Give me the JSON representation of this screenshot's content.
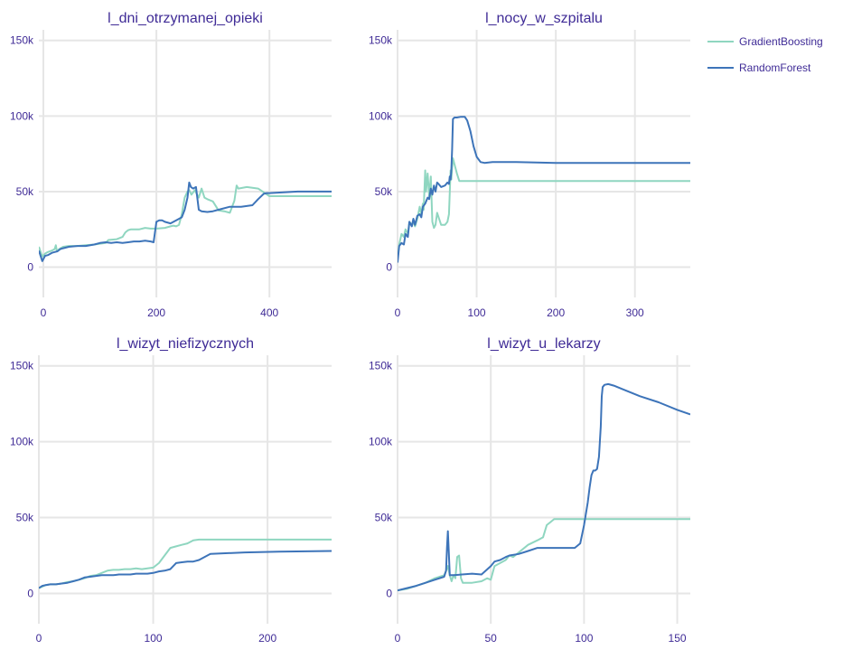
{
  "colors": {
    "gradient_boosting": "#8fd6c0",
    "random_forest": "#3d74b9",
    "text": "#3f2b96",
    "grid": "#e6e6e6"
  },
  "legend": {
    "placement": "top-right",
    "items": [
      {
        "name": "GradientBoosting",
        "color": "#8fd6c0"
      },
      {
        "name": "RandomForest",
        "color": "#3d74b9"
      }
    ]
  },
  "chart_data": [
    {
      "type": "line",
      "title": "l_dni_otrzymanej_opieki",
      "xlim": [
        -8,
        510
      ],
      "ylim": [
        -20000,
        157000
      ],
      "x_ticks": [
        0,
        200,
        400
      ],
      "x_tick_labels": [
        "0",
        "200",
        "400"
      ],
      "y_ticks": [
        0,
        50000,
        100000,
        150000
      ],
      "y_tick_labels": [
        "0",
        "50k",
        "100k",
        "150k"
      ],
      "grid": true,
      "series": [
        {
          "name": "GradientBoosting",
          "x": [
            -8,
            -2,
            3,
            8,
            15,
            20,
            22,
            24,
            28,
            35,
            45,
            60,
            75,
            90,
            100,
            110,
            115,
            130,
            140,
            145,
            150,
            155,
            170,
            180,
            190,
            200,
            215,
            225,
            230,
            235,
            240,
            245,
            250,
            255,
            258,
            262,
            268,
            275,
            280,
            285,
            290,
            300,
            310,
            320,
            330,
            338,
            342,
            345,
            360,
            380,
            400,
            420,
            450,
            480,
            510
          ],
          "y": [
            13500,
            7000,
            9000,
            10000,
            11000,
            12000,
            14500,
            10500,
            12000,
            13500,
            14000,
            14000,
            14500,
            15000,
            15500,
            16000,
            18000,
            18500,
            20000,
            23000,
            24500,
            25000,
            25000,
            26000,
            25500,
            25500,
            26000,
            27000,
            27500,
            27000,
            28000,
            35000,
            46000,
            50000,
            51000,
            48000,
            51000,
            46000,
            52000,
            46000,
            45000,
            43500,
            37500,
            37000,
            36000,
            44000,
            54000,
            52000,
            53000,
            52000,
            47000,
            47000,
            47000,
            47000,
            47000
          ]
        },
        {
          "name": "RandomForest",
          "x": [
            -8,
            -2,
            3,
            8,
            15,
            20,
            25,
            30,
            35,
            45,
            60,
            75,
            90,
            100,
            110,
            120,
            130,
            140,
            150,
            160,
            170,
            180,
            190,
            195,
            200,
            205,
            210,
            215,
            225,
            235,
            245,
            250,
            255,
            258,
            261,
            265,
            270,
            275,
            280,
            290,
            300,
            310,
            330,
            350,
            370,
            380,
            390,
            395,
            400,
            450,
            510
          ],
          "y": [
            11000,
            4000,
            7500,
            8000,
            9500,
            10000,
            10500,
            12000,
            12500,
            13500,
            14000,
            14000,
            15000,
            16000,
            16500,
            16000,
            16500,
            16000,
            16500,
            17000,
            17000,
            17500,
            17000,
            16500,
            30000,
            31000,
            31000,
            30000,
            29000,
            31000,
            33000,
            38000,
            46000,
            56000,
            53000,
            52000,
            53000,
            38000,
            37000,
            36500,
            37000,
            38000,
            40000,
            40000,
            41000,
            45000,
            48500,
            49000,
            49000,
            50000,
            50000
          ]
        }
      ]
    },
    {
      "type": "line",
      "title": "l_nocy_w_szpitalu",
      "xlim": [
        0,
        370
      ],
      "ylim": [
        -20000,
        157000
      ],
      "x_ticks": [
        0,
        100,
        200,
        300
      ],
      "x_tick_labels": [
        "0",
        "100",
        "200",
        "300"
      ],
      "y_ticks": [
        0,
        50000,
        100000,
        150000
      ],
      "y_tick_labels": [
        "0",
        "50k",
        "100k",
        "150k"
      ],
      "grid": true,
      "series": [
        {
          "name": "GradientBoosting",
          "x": [
            0,
            2,
            5,
            8,
            10,
            13,
            15,
            18,
            20,
            22,
            25,
            28,
            30,
            32,
            33,
            35,
            36,
            38,
            40,
            42,
            44,
            46,
            48,
            50,
            55,
            60,
            63,
            65,
            67,
            68,
            69,
            70,
            72,
            75,
            78,
            80,
            100,
            150,
            200,
            250,
            300,
            370
          ],
          "y": [
            5000,
            15000,
            22000,
            20000,
            25000,
            22000,
            30000,
            28000,
            30000,
            27000,
            32000,
            40000,
            35000,
            42000,
            38000,
            64000,
            50000,
            62000,
            47000,
            60000,
            30000,
            26000,
            28000,
            36000,
            28000,
            28000,
            30000,
            35000,
            64000,
            58000,
            66000,
            72000,
            68000,
            62000,
            57000,
            57000,
            57000,
            57000,
            57000,
            57000,
            57000,
            57000
          ]
        },
        {
          "name": "RandomForest",
          "x": [
            0,
            2,
            5,
            8,
            10,
            13,
            15,
            18,
            20,
            22,
            25,
            28,
            30,
            32,
            35,
            38,
            40,
            42,
            44,
            46,
            48,
            50,
            52,
            55,
            60,
            63,
            65,
            66,
            67,
            68,
            69,
            70,
            72,
            75,
            80,
            85,
            88,
            92,
            96,
            100,
            105,
            110,
            120,
            150,
            200,
            250,
            300,
            370
          ],
          "y": [
            3000,
            14000,
            16000,
            15000,
            22000,
            20000,
            30000,
            27000,
            32000,
            28000,
            34000,
            35000,
            33000,
            40000,
            42000,
            46000,
            45000,
            52000,
            48000,
            54000,
            50000,
            56000,
            55000,
            53000,
            54000,
            56000,
            55000,
            60000,
            58000,
            64000,
            78000,
            98000,
            99000,
            99000,
            99500,
            99500,
            97000,
            90000,
            80000,
            73000,
            69500,
            69000,
            69500,
            69500,
            69000,
            69000,
            69000,
            69000
          ]
        }
      ]
    },
    {
      "type": "line",
      "title": "l_wizyt_niefizycznych",
      "xlim": [
        0,
        256
      ],
      "ylim": [
        -20000,
        157000
      ],
      "x_ticks": [
        0,
        100,
        200
      ],
      "x_tick_labels": [
        "0",
        "100",
        "200"
      ],
      "y_ticks": [
        0,
        50000,
        100000,
        150000
      ],
      "y_tick_labels": [
        "0",
        "50k",
        "100k",
        "150k"
      ],
      "grid": true,
      "series": [
        {
          "name": "GradientBoosting",
          "x": [
            0,
            3,
            6,
            10,
            15,
            20,
            25,
            30,
            35,
            40,
            45,
            50,
            55,
            60,
            65,
            70,
            75,
            80,
            85,
            90,
            95,
            100,
            105,
            110,
            115,
            120,
            125,
            130,
            135,
            140,
            150,
            180,
            210,
            256
          ],
          "y": [
            3500,
            4500,
            5500,
            6000,
            6000,
            6500,
            7500,
            8000,
            9000,
            10000,
            11500,
            12000,
            13500,
            15000,
            15500,
            15500,
            16000,
            16000,
            16500,
            16000,
            16500,
            17000,
            20000,
            25000,
            30000,
            31000,
            32000,
            33000,
            35000,
            35500,
            35500,
            35500,
            35500,
            35500
          ]
        },
        {
          "name": "RandomForest",
          "x": [
            0,
            3,
            6,
            10,
            15,
            20,
            25,
            30,
            35,
            40,
            45,
            50,
            55,
            60,
            65,
            70,
            75,
            80,
            85,
            90,
            95,
            100,
            105,
            110,
            115,
            120,
            125,
            130,
            135,
            140,
            150,
            180,
            210,
            256
          ],
          "y": [
            3500,
            5000,
            5500,
            6000,
            6000,
            6500,
            7000,
            8000,
            9000,
            10500,
            11000,
            11500,
            12000,
            12000,
            12000,
            12500,
            12500,
            12500,
            13000,
            13000,
            13000,
            13500,
            14500,
            15000,
            16000,
            20000,
            20500,
            21000,
            21000,
            22000,
            26000,
            27000,
            27500,
            28000
          ]
        }
      ]
    },
    {
      "type": "line",
      "title": "l_wizyt_u_lekarzy",
      "xlim": [
        0,
        157
      ],
      "ylim": [
        -20000,
        157000
      ],
      "x_ticks": [
        0,
        50,
        100,
        150
      ],
      "x_tick_labels": [
        "0",
        "50",
        "100",
        "150"
      ],
      "y_ticks": [
        0,
        50000,
        100000,
        150000
      ],
      "y_tick_labels": [
        "0",
        "50k",
        "100k",
        "150k"
      ],
      "grid": true,
      "series": [
        {
          "name": "GradientBoosting",
          "x": [
            0,
            5,
            10,
            15,
            20,
            25,
            26,
            27,
            28,
            29,
            30,
            31,
            32,
            33,
            34,
            35,
            40,
            45,
            48,
            50,
            52,
            55,
            58,
            60,
            62,
            65,
            70,
            75,
            78,
            80,
            82,
            83,
            84,
            100,
            130,
            157
          ],
          "y": [
            2000,
            3000,
            5000,
            7000,
            10000,
            12000,
            15000,
            18000,
            12000,
            8000,
            12000,
            10000,
            24000,
            25000,
            10000,
            7000,
            7000,
            8000,
            10000,
            9000,
            18000,
            20000,
            22000,
            25000,
            24000,
            27000,
            32000,
            35000,
            37000,
            45000,
            47000,
            48000,
            49000,
            49000,
            49000,
            49000
          ]
        },
        {
          "name": "RandomForest",
          "x": [
            0,
            5,
            10,
            15,
            20,
            25,
            26,
            26.5,
            27,
            27.5,
            28,
            30,
            40,
            45,
            50,
            52,
            55,
            58,
            60,
            65,
            70,
            75,
            80,
            85,
            90,
            95,
            98,
            100,
            102,
            103,
            104,
            105,
            106,
            107,
            108,
            109,
            109.5,
            110,
            111,
            113,
            116,
            120,
            130,
            140,
            150,
            157
          ],
          "y": [
            2000,
            3500,
            5000,
            7000,
            9000,
            11000,
            15000,
            30000,
            41000,
            26000,
            12000,
            12000,
            13000,
            12500,
            18000,
            21000,
            22000,
            24000,
            25000,
            26000,
            28000,
            30000,
            30000,
            30000,
            30000,
            30000,
            33000,
            45000,
            60000,
            70000,
            78000,
            81000,
            81000,
            82000,
            90000,
            110000,
            130000,
            136000,
            137500,
            138000,
            137000,
            135000,
            130000,
            126000,
            121000,
            118000
          ]
        }
      ]
    }
  ]
}
